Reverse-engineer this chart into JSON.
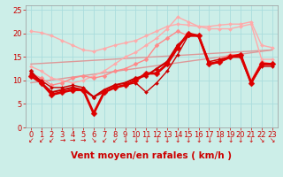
{
  "background_color": "#cceee8",
  "grid_color": "#aadddd",
  "xlabel": "Vent moyen/en rafales ( km/h )",
  "xlabel_color": "#cc0000",
  "xlabel_fontsize": 7.5,
  "tick_color": "#cc0000",
  "tick_fontsize": 6,
  "ylim": [
    0,
    26
  ],
  "xlim": [
    -0.5,
    23.5
  ],
  "yticks": [
    0,
    5,
    10,
    15,
    20,
    25
  ],
  "xticks": [
    0,
    1,
    2,
    3,
    4,
    5,
    6,
    7,
    8,
    9,
    10,
    11,
    12,
    13,
    14,
    15,
    16,
    17,
    18,
    19,
    20,
    21,
    22,
    23
  ],
  "series": [
    {
      "name": "light_pink_top",
      "x": [
        0,
        1,
        2,
        3,
        4,
        5,
        6,
        7,
        8,
        9,
        10,
        11,
        12,
        13,
        14,
        15,
        16,
        17,
        18,
        19,
        20,
        21,
        22,
        23
      ],
      "y": [
        20.5,
        20.2,
        19.5,
        18.5,
        17.5,
        16.5,
        16.2,
        16.8,
        17.5,
        18.0,
        18.5,
        19.5,
        20.5,
        21.5,
        22.0,
        21.8,
        21.5,
        21.5,
        21.8,
        22.0,
        22.0,
        22.5,
        17.5,
        17.0
      ],
      "color": "#ffaaaa",
      "lw": 1.0,
      "marker": "D",
      "ms": 2.0,
      "zorder": 2
    },
    {
      "name": "light_pink_bottom",
      "x": [
        0,
        1,
        2,
        3,
        4,
        5,
        6,
        7,
        8,
        9,
        10,
        11,
        12,
        13,
        14,
        15,
        16,
        17,
        18,
        19,
        20,
        21,
        22,
        23
      ],
      "y": [
        13.0,
        12.0,
        10.5,
        10.0,
        9.5,
        10.0,
        11.0,
        12.0,
        13.5,
        15.0,
        16.0,
        17.5,
        19.0,
        21.0,
        23.5,
        22.5,
        21.5,
        21.0,
        21.0,
        21.0,
        21.5,
        22.0,
        14.5,
        14.5
      ],
      "color": "#ffaaaa",
      "lw": 1.0,
      "marker": "D",
      "ms": 2.0,
      "zorder": 2
    },
    {
      "name": "pink_mid_upper",
      "x": [
        0,
        1,
        2,
        3,
        4,
        5,
        6,
        7,
        8,
        9,
        10,
        11,
        12,
        13,
        14,
        15,
        16,
        17,
        18,
        19,
        20,
        21,
        22,
        23
      ],
      "y": [
        11.5,
        10.5,
        9.0,
        9.5,
        10.5,
        11.0,
        10.5,
        11.0,
        12.0,
        12.5,
        13.5,
        14.5,
        17.5,
        19.0,
        20.5,
        19.5,
        19.5,
        14.0,
        14.5,
        15.5,
        15.5,
        10.0,
        14.0,
        13.5
      ],
      "color": "#ff8888",
      "lw": 1.0,
      "marker": "D",
      "ms": 2.5,
      "zorder": 3
    },
    {
      "name": "red_main_bold",
      "x": [
        0,
        1,
        2,
        3,
        4,
        5,
        6,
        7,
        8,
        9,
        10,
        11,
        12,
        13,
        14,
        15,
        16,
        17,
        18,
        19,
        20,
        21,
        22,
        23
      ],
      "y": [
        11.0,
        9.5,
        7.0,
        7.5,
        8.0,
        8.0,
        3.0,
        7.5,
        8.5,
        9.0,
        10.0,
        11.5,
        11.5,
        13.5,
        17.0,
        20.0,
        19.5,
        13.5,
        14.0,
        15.0,
        15.5,
        9.5,
        13.5,
        13.5
      ],
      "color": "#dd0000",
      "lw": 2.0,
      "marker": "D",
      "ms": 3.5,
      "zorder": 5
    },
    {
      "name": "red_mid1",
      "x": [
        0,
        1,
        2,
        3,
        4,
        5,
        6,
        7,
        8,
        9,
        10,
        11,
        12,
        13,
        14,
        15,
        16,
        17,
        18,
        19,
        20,
        21,
        22,
        23
      ],
      "y": [
        12.0,
        9.5,
        7.5,
        8.0,
        8.5,
        8.0,
        6.5,
        8.0,
        9.0,
        9.5,
        10.5,
        11.0,
        12.5,
        14.0,
        17.5,
        19.5,
        19.5,
        13.5,
        14.0,
        15.0,
        15.0,
        9.5,
        13.5,
        13.5
      ],
      "color": "#cc0000",
      "lw": 1.5,
      "marker": "D",
      "ms": 2.5,
      "zorder": 4
    },
    {
      "name": "red_mid2",
      "x": [
        0,
        1,
        2,
        3,
        4,
        5,
        6,
        7,
        8,
        9,
        10,
        11,
        12,
        13,
        14,
        15,
        16,
        17,
        18,
        19,
        20,
        21,
        22,
        23
      ],
      "y": [
        11.5,
        10.0,
        8.5,
        8.5,
        9.0,
        8.5,
        6.5,
        7.5,
        8.5,
        9.0,
        9.5,
        7.5,
        9.5,
        12.0,
        15.5,
        19.5,
        19.5,
        14.0,
        14.5,
        15.0,
        15.5,
        9.5,
        13.0,
        13.0
      ],
      "color": "#cc0000",
      "lw": 1.0,
      "marker": "D",
      "ms": 2.0,
      "zorder": 3
    },
    {
      "name": "pink_trend_low",
      "x": [
        0,
        23
      ],
      "y": [
        9.5,
        16.5
      ],
      "color": "#dd9999",
      "lw": 1.0,
      "marker": null,
      "ms": 0,
      "zorder": 1
    },
    {
      "name": "pink_trend_high",
      "x": [
        0,
        23
      ],
      "y": [
        13.5,
        16.5
      ],
      "color": "#dd9999",
      "lw": 1.0,
      "marker": null,
      "ms": 0,
      "zorder": 1
    }
  ],
  "wind_arrows": [
    "↙",
    "↙",
    "↙",
    "→",
    "→",
    "→",
    "↘",
    "↙",
    "↙",
    "↓",
    "↓",
    "↓",
    "↓",
    "↓",
    "↓",
    "↓",
    "↓",
    "↓",
    "↓",
    "↓",
    "↓",
    "↓",
    "↘",
    "↘"
  ],
  "arrow_color": "#cc0000",
  "arrow_fontsize": 5.5
}
